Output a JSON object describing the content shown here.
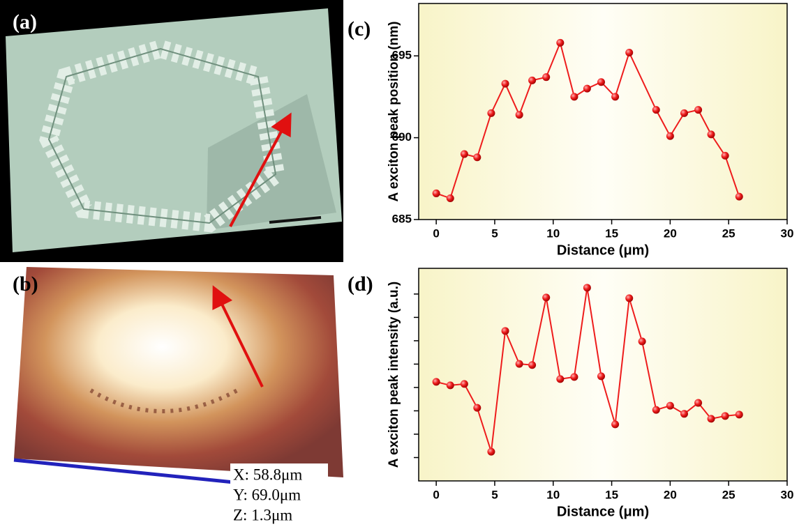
{
  "images": [
    {
      "panel_label": "(a)"
    },
    {
      "panel_label": "(b)",
      "annotations": [
        "X: 58.8μm",
        "Y: 69.0μm",
        "Z: 1.3μm"
      ]
    }
  ],
  "chart_data": [
    {
      "type": "line",
      "panel_label": "(c)",
      "x_label": "Distance (μm)",
      "y_label": "A exciton peak position (nm)",
      "x": [
        0,
        1.2,
        2.4,
        3.5,
        4.7,
        5.9,
        7.1,
        8.2,
        9.4,
        10.6,
        11.8,
        12.9,
        14.1,
        15.3,
        16.5,
        18.8,
        20,
        21.2,
        22.4,
        23.5,
        24.7,
        25.9
      ],
      "series": [
        {
          "color": "#ee1c1c",
          "values": [
            686.6,
            686.3,
            689.0,
            688.8,
            691.5,
            693.3,
            691.4,
            693.5,
            693.7,
            695.8,
            692.5,
            693.0,
            693.4,
            692.5,
            695.2,
            691.7,
            690.1,
            691.5,
            691.7,
            690.2,
            688.9,
            686.4
          ]
        }
      ],
      "xlim": [
        -1.5,
        30
      ],
      "xticks": [
        0,
        5,
        10,
        15,
        20,
        25,
        30
      ],
      "ylim": [
        685,
        698.2
      ],
      "yticks": [
        685,
        690,
        695
      ],
      "ytick_labels": true
    },
    {
      "type": "line",
      "panel_label": "(d)",
      "x_label": "Distance (μm)",
      "y_label": "A exciton peak intensity (a.u.)",
      "x": [
        0,
        1.2,
        2.4,
        3.5,
        4.7,
        5.9,
        7.1,
        8.2,
        9.4,
        10.6,
        11.8,
        12.9,
        14.1,
        15.3,
        16.5,
        17.6,
        18.8,
        20,
        21.2,
        22.4,
        23.5,
        24.7,
        25.9
      ],
      "series": [
        {
          "color": "#ee1c1c",
          "values": [
            4.24,
            4.09,
            4.15,
            3.13,
            1.25,
            6.42,
            5.01,
            4.96,
            7.85,
            4.36,
            4.45,
            8.27,
            4.48,
            2.42,
            7.82,
            5.97,
            3.04,
            3.22,
            2.87,
            3.34,
            2.66,
            2.78,
            2.84
          ]
        }
      ],
      "xlim": [
        -1.5,
        30
      ],
      "xticks": [
        0,
        5,
        10,
        15,
        20,
        25,
        30
      ],
      "ylim": [
        0,
        9.1
      ],
      "yticks": [
        1,
        2,
        3,
        4,
        5,
        6,
        7,
        8
      ],
      "ytick_labels": false
    }
  ]
}
